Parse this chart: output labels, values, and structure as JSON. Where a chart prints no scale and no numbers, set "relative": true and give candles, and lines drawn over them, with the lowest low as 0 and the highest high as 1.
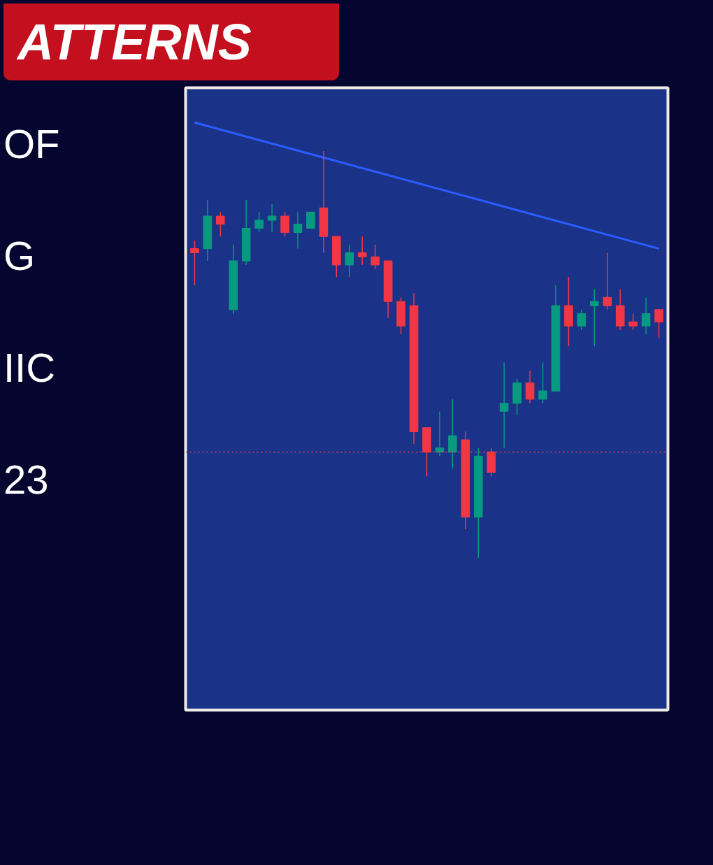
{
  "chart_data": {
    "type": "candlestick",
    "title": "ATTERNS",
    "annotations": [
      "OF",
      "G",
      "IIC",
      "23"
    ],
    "relative": true,
    "categories": [
      null,
      null,
      null,
      null,
      null,
      null,
      null,
      null,
      null,
      null,
      null,
      null,
      null,
      null,
      null,
      null,
      null,
      null,
      null,
      null,
      null,
      null,
      null,
      null,
      null,
      null,
      null,
      null,
      null,
      null,
      null,
      null,
      null,
      null,
      null,
      null,
      null
    ],
    "ohlc": [
      [
        0.76,
        0.78,
        0.67,
        0.75
      ],
      [
        0.76,
        0.88,
        0.73,
        0.84
      ],
      [
        0.84,
        0.85,
        0.79,
        0.82
      ],
      [
        0.61,
        0.77,
        0.6,
        0.73
      ],
      [
        0.73,
        0.88,
        0.72,
        0.81
      ],
      [
        0.81,
        0.85,
        0.8,
        0.83
      ],
      [
        0.83,
        0.87,
        0.8,
        0.84
      ],
      [
        0.84,
        0.85,
        0.79,
        0.8
      ],
      [
        0.8,
        0.85,
        0.76,
        0.82
      ],
      [
        0.81,
        0.85,
        0.81,
        0.85
      ],
      [
        0.86,
        1.0,
        0.75,
        0.79
      ],
      [
        0.79,
        0.79,
        0.69,
        0.72
      ],
      [
        0.72,
        0.77,
        0.69,
        0.75
      ],
      [
        0.75,
        0.79,
        0.72,
        0.74
      ],
      [
        0.74,
        0.77,
        0.71,
        0.72
      ],
      [
        0.73,
        0.73,
        0.59,
        0.63
      ],
      [
        0.63,
        0.64,
        0.55,
        0.57
      ],
      [
        0.62,
        0.65,
        0.28,
        0.31
      ],
      [
        0.32,
        0.32,
        0.2,
        0.26
      ],
      [
        0.26,
        0.36,
        0.25,
        0.27
      ],
      [
        0.26,
        0.39,
        0.22,
        0.3
      ],
      [
        0.29,
        0.31,
        0.07,
        0.1
      ],
      [
        0.1,
        0.27,
        0.0,
        0.25
      ],
      [
        0.26,
        0.27,
        0.2,
        0.21
      ],
      [
        0.36,
        0.48,
        0.27,
        0.38
      ],
      [
        0.38,
        0.44,
        0.35,
        0.43
      ],
      [
        0.43,
        0.46,
        0.38,
        0.39
      ],
      [
        0.39,
        0.48,
        0.38,
        0.41
      ],
      [
        0.41,
        0.67,
        0.41,
        0.62
      ],
      [
        0.62,
        0.69,
        0.52,
        0.57
      ],
      [
        0.57,
        0.61,
        0.56,
        0.6
      ],
      [
        0.62,
        0.66,
        0.52,
        0.63
      ],
      [
        0.64,
        0.75,
        0.61,
        0.62
      ],
      [
        0.62,
        0.66,
        0.56,
        0.57
      ],
      [
        0.58,
        0.6,
        0.56,
        0.57
      ],
      [
        0.57,
        0.64,
        0.55,
        0.6
      ],
      [
        0.61,
        0.61,
        0.54,
        0.58
      ]
    ],
    "colors": [
      "#f23645",
      "#089981",
      "#f23645",
      "#089981",
      "#089981",
      "#089981",
      "#089981",
      "#f23645",
      "#089981",
      "#089981",
      "#f23645",
      "#f23645",
      "#089981",
      "#f23645",
      "#f23645",
      "#f23645",
      "#f23645",
      "#f23645",
      "#f23645",
      "#089981",
      "#089981",
      "#f23645",
      "#089981",
      "#f23645",
      "#089981",
      "#089981",
      "#f23645",
      "#089981",
      "#089981",
      "#f23645",
      "#089981",
      "#089981",
      "#f23645",
      "#f23645",
      "#f23645",
      "#089981",
      "#f23645"
    ],
    "series": [
      {
        "type": "line",
        "values": [
          1.07,
          null,
          null,
          null,
          null,
          null,
          null,
          null,
          null,
          null,
          null,
          null,
          null,
          null,
          null,
          null,
          null,
          null,
          null,
          null,
          null,
          null,
          null,
          null,
          null,
          null,
          null,
          null,
          null,
          null,
          null,
          null,
          null,
          null,
          null,
          null,
          0.76
        ],
        "color": "#2b5cff"
      }
    ],
    "ref_lines": [
      {
        "axis": "y",
        "value": 0.26,
        "color": "#e0455a",
        "line_style": "dotted"
      }
    ]
  }
}
